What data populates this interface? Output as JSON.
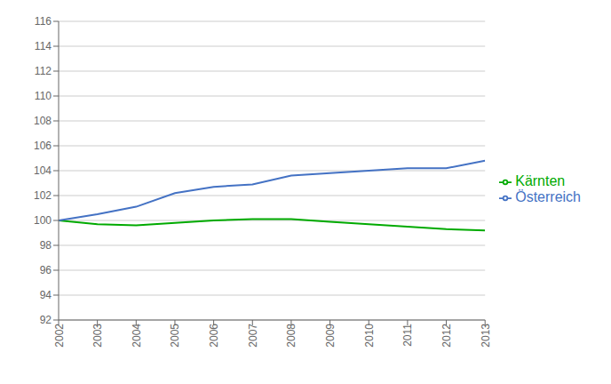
{
  "chart_data": {
    "type": "line",
    "x": [
      2002,
      2003,
      2004,
      2005,
      2006,
      2007,
      2008,
      2009,
      2010,
      2011,
      2012,
      2013
    ],
    "series": [
      {
        "name": "Kärnten",
        "color": "#00aa00",
        "values": [
          100.0,
          99.7,
          99.6,
          99.8,
          100.0,
          100.1,
          100.1,
          99.9,
          99.7,
          99.5,
          99.3,
          99.2
        ]
      },
      {
        "name": "Österreich",
        "color": "#4472c4",
        "values": [
          100.0,
          100.5,
          101.1,
          102.2,
          102.7,
          102.9,
          103.6,
          103.8,
          104.0,
          104.2,
          104.2,
          104.8
        ]
      }
    ],
    "xlim": [
      2002,
      2013
    ],
    "xticks": [
      2002,
      2003,
      2004,
      2005,
      2006,
      2007,
      2008,
      2009,
      2010,
      2011,
      2012,
      2013
    ],
    "ylim": [
      92,
      116
    ],
    "yticks": [
      92,
      94,
      96,
      98,
      100,
      102,
      104,
      106,
      108,
      110,
      112,
      114,
      116
    ],
    "grid": "y",
    "legend": "right"
  }
}
